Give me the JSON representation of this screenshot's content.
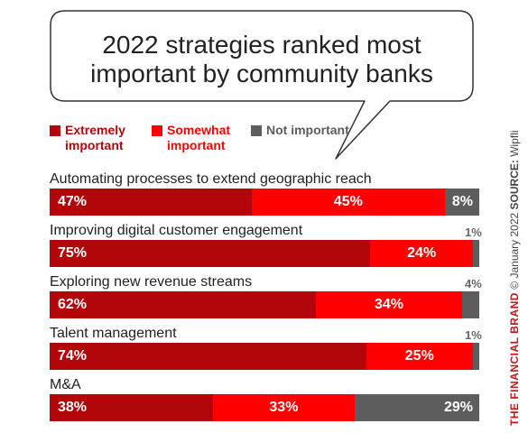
{
  "colors": {
    "extremely": "#b3060a",
    "somewhat": "#fe0000",
    "not": "#5d5d5d",
    "outline": "#333333"
  },
  "title_lines": [
    "2022 strategies ranked most",
    "important by community banks"
  ],
  "legend": [
    {
      "label": "Extremely important",
      "color": "#b3060a",
      "text_color": "#b3060a"
    },
    {
      "label": "Somewhat important",
      "color": "#fe0000",
      "text_color": "#fe0000"
    },
    {
      "label": "Not important",
      "color": "#5d5d5d",
      "text_color": "#5d5d5d"
    }
  ],
  "credit": {
    "brand": "THE FINANCIAL BRAND",
    "copyright": "© January 2022",
    "source_label": "SOURCE:",
    "source": "Wipfli"
  },
  "chart_data": {
    "type": "bar",
    "orientation": "horizontal",
    "stacked": true,
    "title": "2022 strategies ranked most important by community banks",
    "categories": [
      "Automating processes to extend geographic reach",
      "Improving digital customer engagement",
      "Exploring new revenue streams",
      "Talent management",
      "M&A"
    ],
    "series": [
      {
        "name": "Extremely important",
        "values": [
          47,
          75,
          62,
          74,
          38
        ],
        "labels": [
          "47%",
          "75%",
          "62%",
          "74%",
          "38%"
        ]
      },
      {
        "name": "Somewhat important",
        "values": [
          45,
          24,
          34,
          25,
          33
        ],
        "labels": [
          "45%",
          "24%",
          "34%",
          "25%",
          "33%"
        ]
      },
      {
        "name": "Not important",
        "values": [
          8,
          1,
          4,
          1,
          29
        ],
        "labels": [
          "8%",
          "1%",
          "4%",
          "1%",
          "29%"
        ]
      }
    ],
    "xlim": [
      0,
      100
    ],
    "grid": false,
    "legend_position": "top-left"
  }
}
